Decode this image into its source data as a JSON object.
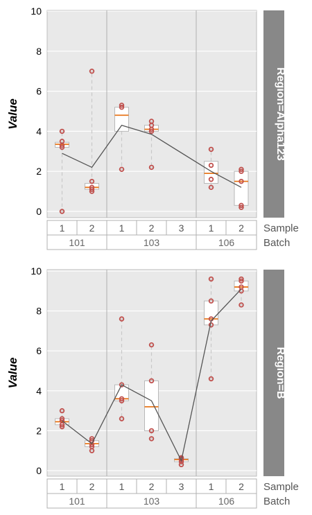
{
  "chart_data": {
    "type": "box",
    "ylabel": "Value",
    "ylim": [
      -0.3,
      10
    ],
    "yticks": [
      0,
      2,
      4,
      6,
      8,
      10
    ],
    "grid": true,
    "x_axis_names": [
      "Sample",
      "Batch"
    ],
    "group_labels": [
      "101",
      "103",
      "106"
    ],
    "categories": [
      {
        "batch": "101",
        "sample": "1"
      },
      {
        "batch": "101",
        "sample": "2"
      },
      {
        "batch": "103",
        "sample": "1"
      },
      {
        "batch": "103",
        "sample": "2"
      },
      {
        "batch": "103",
        "sample": "3"
      },
      {
        "batch": "106",
        "sample": "1"
      },
      {
        "batch": "106",
        "sample": "2"
      }
    ],
    "colors": {
      "panel": "#e9e9e9",
      "strip": "#888888",
      "point": "#c0504d",
      "median": "#e8761a",
      "mean_line": "#555555",
      "whisker": "#c8c8c8"
    },
    "panels": [
      {
        "strip_label": "Region=Alpha123",
        "boxes": [
          {
            "q1": 3.2,
            "median": 3.35,
            "q3": 3.45,
            "whisker_low": 0.0,
            "whisker_high": 4.0,
            "points": [
              0.0,
              3.2,
              3.3,
              3.5,
              4.0
            ],
            "mean": 2.9
          },
          {
            "q1": 1.1,
            "median": 1.2,
            "q3": 1.4,
            "whisker_low": 1.0,
            "whisker_high": 7.0,
            "points": [
              1.0,
              1.1,
              1.2,
              1.5,
              7.0
            ],
            "mean": 2.2
          },
          {
            "q1": 4.0,
            "median": 4.8,
            "q3": 5.2,
            "whisker_low": 2.1,
            "whisker_high": 5.3,
            "points": [
              2.1,
              5.2,
              5.3
            ],
            "mean": 4.3
          },
          {
            "q1": 4.0,
            "median": 4.1,
            "q3": 4.3,
            "whisker_low": 2.2,
            "whisker_high": 4.5,
            "points": [
              2.2,
              4.0,
              4.1,
              4.3,
              4.5
            ],
            "mean": 3.85
          },
          null,
          {
            "q1": 1.4,
            "median": 1.9,
            "q3": 2.5,
            "whisker_low": 1.2,
            "whisker_high": 3.1,
            "points": [
              1.2,
              1.6,
              2.3,
              3.1
            ],
            "mean": 2.0
          },
          {
            "q1": 0.3,
            "median": 1.5,
            "q3": 2.0,
            "whisker_low": 0.2,
            "whisker_high": 2.1,
            "points": [
              0.2,
              0.3,
              1.5,
              2.0,
              2.1
            ],
            "mean": 1.2
          }
        ]
      },
      {
        "strip_label": "Region=B",
        "boxes": [
          {
            "q1": 2.3,
            "median": 2.45,
            "q3": 2.6,
            "whisker_low": 2.2,
            "whisker_high": 3.0,
            "points": [
              2.2,
              2.3,
              2.5,
              2.6,
              3.0
            ],
            "mean": 2.5
          },
          {
            "q1": 1.2,
            "median": 1.35,
            "q3": 1.5,
            "whisker_low": 1.0,
            "whisker_high": 1.6,
            "points": [
              1.0,
              1.2,
              1.3,
              1.5,
              1.6
            ],
            "mean": 1.35
          },
          {
            "q1": 3.5,
            "median": 3.6,
            "q3": 4.3,
            "whisker_low": 2.6,
            "whisker_high": 7.6,
            "points": [
              2.6,
              3.5,
              3.6,
              4.3,
              7.6
            ],
            "mean": 4.3
          },
          {
            "q1": 2.0,
            "median": 3.2,
            "q3": 4.5,
            "whisker_low": 1.6,
            "whisker_high": 6.3,
            "points": [
              1.6,
              2.0,
              4.5,
              6.3
            ],
            "mean": 3.5
          },
          {
            "q1": 0.45,
            "median": 0.55,
            "q3": 0.6,
            "whisker_low": 0.3,
            "whisker_high": 0.65,
            "points": [
              0.3,
              0.45,
              0.55,
              0.6,
              0.65
            ],
            "mean": 0.5
          },
          {
            "q1": 7.3,
            "median": 7.6,
            "q3": 8.5,
            "whisker_low": 4.6,
            "whisker_high": 9.6,
            "points": [
              4.6,
              7.3,
              7.6,
              8.5,
              9.6
            ],
            "mean": 7.5
          },
          {
            "q1": 9.0,
            "median": 9.2,
            "q3": 9.5,
            "whisker_low": 8.3,
            "whisker_high": 9.6,
            "points": [
              8.3,
              9.0,
              9.2,
              9.5,
              9.6
            ],
            "mean": 9.1
          }
        ]
      }
    ]
  }
}
